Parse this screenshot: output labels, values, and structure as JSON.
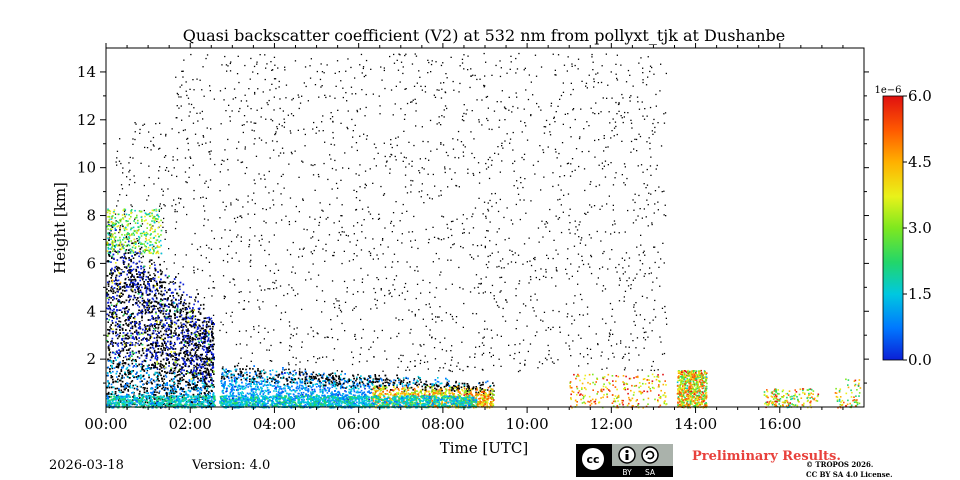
{
  "chart_data": {
    "type": "heatmap",
    "title": "Quasi backscatter coefficient (V2) at 532 nm from pollyxt_tjk at Dushanbe",
    "xlabel": "Time [UTC]",
    "ylabel": "Height [km]",
    "xlim_hours": [
      0,
      18
    ],
    "ylim_km": [
      0,
      15
    ],
    "x_ticks": [
      {
        "hour": 0,
        "label": "00:00"
      },
      {
        "hour": 2,
        "label": "02:00"
      },
      {
        "hour": 4,
        "label": "04:00"
      },
      {
        "hour": 6,
        "label": "06:00"
      },
      {
        "hour": 8,
        "label": "08:00"
      },
      {
        "hour": 10,
        "label": "10:00"
      },
      {
        "hour": 12,
        "label": "12:00"
      },
      {
        "hour": 14,
        "label": "14:00"
      },
      {
        "hour": 16,
        "label": "16:00"
      }
    ],
    "y_ticks": [
      {
        "km": 2,
        "label": "2"
      },
      {
        "km": 4,
        "label": "4"
      },
      {
        "km": 6,
        "label": "6"
      },
      {
        "km": 8,
        "label": "8"
      },
      {
        "km": 10,
        "label": "10"
      },
      {
        "km": 12,
        "label": "12"
      },
      {
        "km": 14,
        "label": "14"
      }
    ],
    "colorbar": {
      "range": [
        0.0,
        6.0
      ],
      "scale_label": "1e−6",
      "ticks": [
        {
          "value": 0.0,
          "label": "0.0"
        },
        {
          "value": 1.5,
          "label": "1.5"
        },
        {
          "value": 3.0,
          "label": "3.0"
        },
        {
          "value": 4.5,
          "label": "4.5"
        },
        {
          "value": 6.0,
          "label": "6.0"
        }
      ],
      "colormap": [
        "#0b1fd6",
        "#0077ff",
        "#00c8e0",
        "#22d66a",
        "#7ee81f",
        "#e9f21a",
        "#ffb000",
        "#ff5a00",
        "#e01010"
      ]
    },
    "data_gap_hour": 2.6,
    "signal_region": [
      {
        "from_hour": 0.0,
        "to_hour": 2.6,
        "top_km": 8.5,
        "note": "aerosol up to ~8 km, dense low layer"
      },
      {
        "from_hour": 2.7,
        "to_hour": 9.0,
        "top_km": 1.5,
        "note": "boundary layer aerosol"
      },
      {
        "from_hour": 6.5,
        "to_hour": 9.0,
        "top_km": 0.8,
        "note": "elevated values 3.0–6.0"
      },
      {
        "from_hour": 11.5,
        "to_hour": 13.3,
        "top_km": 1.5,
        "note": "sparse high values"
      },
      {
        "from_hour": 13.3,
        "to_hour": 14.3,
        "top_km": 1.6,
        "note": "strong patch"
      },
      {
        "from_hour": 15.6,
        "to_hour": 17.9,
        "top_km": 1.2,
        "note": "scattered patches"
      }
    ]
  },
  "footer": {
    "date": "2026-03-18",
    "version": "Version: 4.0",
    "preliminary": "Preliminary Results.",
    "copyright_line1": "© TROPOS 2026.",
    "copyright_line2": "CC BY SA 4.0 License.",
    "license_badge": {
      "text_cc": "cc",
      "text_by": "BY",
      "text_sa": "SA"
    }
  }
}
